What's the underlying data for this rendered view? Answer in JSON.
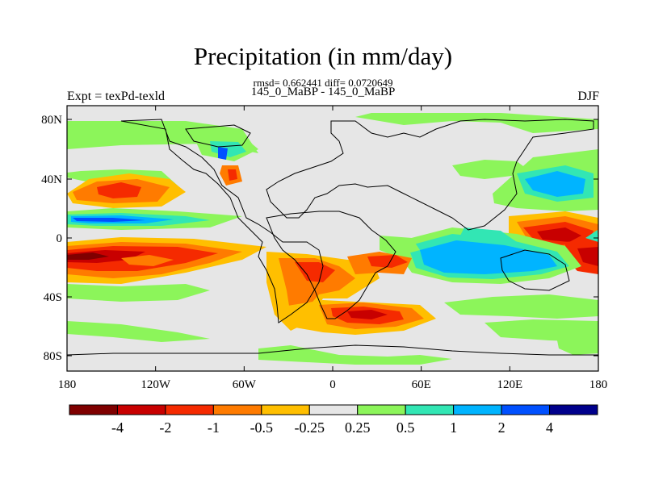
{
  "title": "Precipitation (in mm/day)",
  "stats": "rmsd= 0.662441 diff= 0.0720649",
  "comparison": "145_0_MaBP - 145_0_MaBP",
  "expt_label": "Expt = texPd-texld",
  "season": "DJF",
  "x_ticks": [
    "180",
    "120W",
    "60W",
    "0",
    "60E",
    "120E",
    "180"
  ],
  "y_ticks": [
    "80N",
    "40N",
    "0",
    "40S",
    "80S"
  ],
  "colorbar": {
    "colors": [
      "#7f0000",
      "#c80000",
      "#f52a00",
      "#ff7b00",
      "#ffbf00",
      "#e6e6e6",
      "#8cf55a",
      "#32e6b4",
      "#00b4ff",
      "#0050ff",
      "#00008c"
    ],
    "labels": [
      "-4",
      "-2",
      "-1",
      "-0.5",
      "-0.25",
      "0.25",
      "0.5",
      "1",
      "2",
      "4"
    ]
  }
}
